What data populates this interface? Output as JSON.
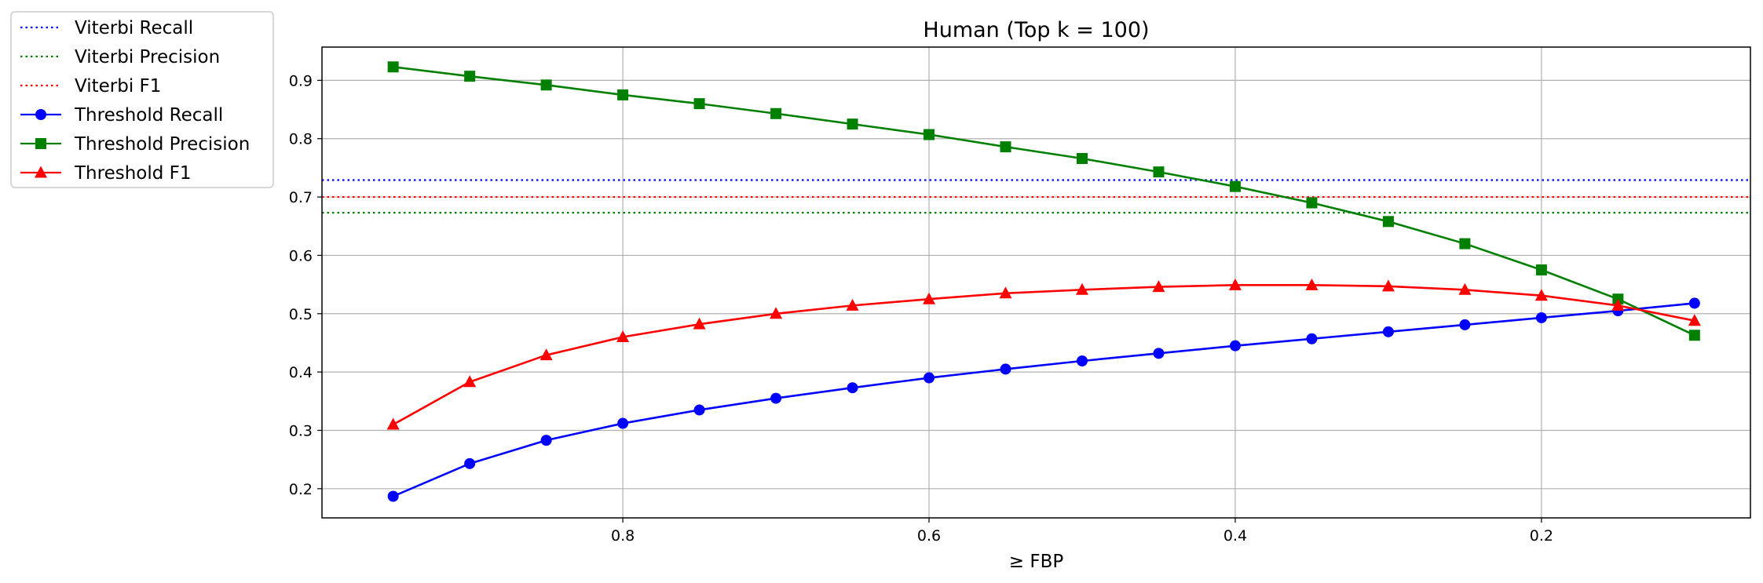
{
  "chart_data": {
    "type": "line",
    "title": "Human (Top k = 100)",
    "xlabel": "≥ FBP",
    "ylabel": "",
    "x_inverted": true,
    "xlim": [
      0.9965,
      0.0635
    ],
    "ylim": [
      0.15,
      0.957
    ],
    "grid": true,
    "legend_position": "outside-left",
    "x_ticks": [
      0.8,
      0.6,
      0.4,
      0.2
    ],
    "x_tick_labels": [
      "0.8",
      "0.6",
      "0.4",
      "0.2"
    ],
    "y_ticks": [
      0.2,
      0.3,
      0.4,
      0.5,
      0.6,
      0.7,
      0.8,
      0.9
    ],
    "y_tick_labels": [
      "0.2",
      "0.3",
      "0.4",
      "0.5",
      "0.6",
      "0.7",
      "0.8",
      "0.9"
    ],
    "x": [
      0.95,
      0.9,
      0.85,
      0.8,
      0.75,
      0.7,
      0.65,
      0.6,
      0.55,
      0.5,
      0.45,
      0.4,
      0.35,
      0.3,
      0.25,
      0.2,
      0.15,
      0.1
    ],
    "hlines": [
      {
        "name": "Viterbi Recall",
        "value": 0.729,
        "color": "#0000ff"
      },
      {
        "name": "Viterbi Precision",
        "value": 0.673,
        "color": "#008000"
      },
      {
        "name": "Viterbi F1",
        "value": 0.7,
        "color": "#ff0000"
      }
    ],
    "series": [
      {
        "name": "Threshold Recall",
        "color": "#0000ff",
        "marker": "circle",
        "values": [
          0.187,
          0.243,
          0.283,
          0.312,
          0.335,
          0.355,
          0.373,
          0.39,
          0.405,
          0.419,
          0.432,
          0.445,
          0.457,
          0.469,
          0.481,
          0.493,
          0.505,
          0.518
        ]
      },
      {
        "name": "Threshold Precision",
        "color": "#008000",
        "marker": "square",
        "values": [
          0.923,
          0.907,
          0.892,
          0.875,
          0.86,
          0.843,
          0.825,
          0.807,
          0.786,
          0.766,
          0.743,
          0.718,
          0.69,
          0.658,
          0.62,
          0.575,
          0.525,
          0.463
        ]
      },
      {
        "name": "Threshold F1",
        "color": "#ff0000",
        "marker": "triangle",
        "values": [
          0.31,
          0.383,
          0.429,
          0.46,
          0.482,
          0.5,
          0.514,
          0.525,
          0.535,
          0.541,
          0.546,
          0.549,
          0.549,
          0.547,
          0.541,
          0.531,
          0.514,
          0.488
        ]
      }
    ]
  }
}
